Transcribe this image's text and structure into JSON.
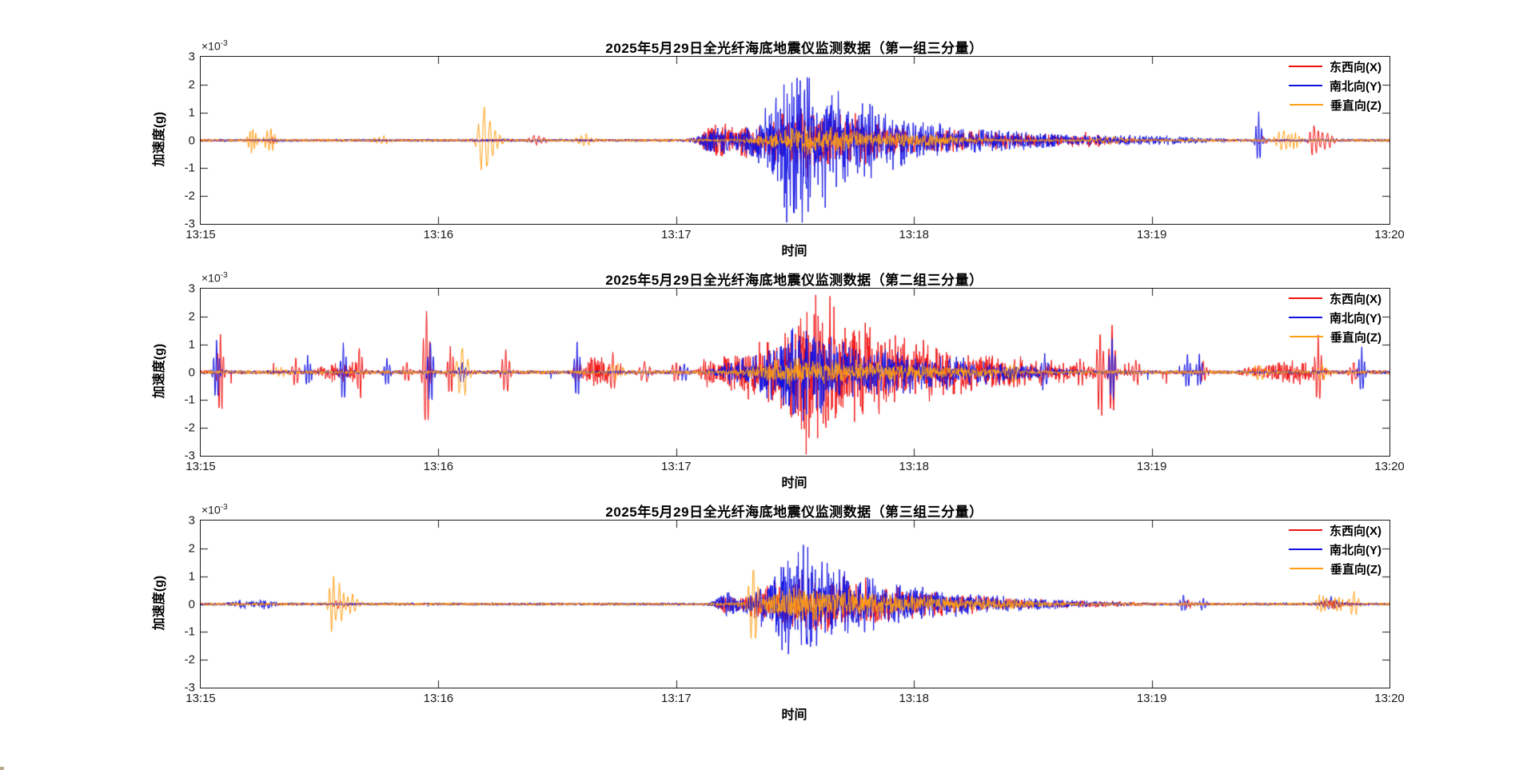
{
  "figure": {
    "background": "#ffffff",
    "axes_color": "#1a1a1a",
    "text_color": "#000000"
  },
  "chart_data": [
    {
      "type": "line",
      "title": "2025年5月29日全光纤海底地震仪监测数据（第一组三分量）",
      "xlabel": "时间",
      "ylabel": "加速度(g)",
      "y_exponent_base": "×10",
      "y_exponent_power": "-3",
      "x_ticks": [
        "13:15",
        "13:16",
        "13:17",
        "13:18",
        "13:19",
        "13:20"
      ],
      "y_ticks": [
        "3",
        "2",
        "1",
        "0",
        "-1",
        "-2",
        "-3"
      ],
      "ylim_scaled": [
        -3,
        3
      ],
      "y_unit_scale": "1e-3 g",
      "x_range_seconds": 300,
      "grid": false,
      "legend_position": "top-right-inside",
      "event_format": "[t_seconds_after_13:15, peak_amplitude_in_1e-3_g, width_seconds, mode b=random-burst s=spike-wavelet w=wiggle]",
      "series": [
        {
          "name": "东西向(X)",
          "color": "#f11010",
          "noise": 0.045,
          "spike_noise": [
            0.002,
            0.1
          ],
          "events": [
            [
              18,
              0.15,
              1,
              "s"
            ],
            [
              85,
              0.15,
              2,
              "w"
            ],
            [
              130,
              0.55,
              4,
              "b"
            ],
            [
              137,
              0.5,
              6,
              "b"
            ],
            [
              150,
              0.85,
              10,
              "b"
            ],
            [
              158,
              0.75,
              12,
              "b"
            ],
            [
              170,
              0.55,
              12,
              "b"
            ],
            [
              185,
              0.35,
              15,
              "b"
            ],
            [
              205,
              0.22,
              18,
              "b"
            ],
            [
              225,
              0.15,
              10,
              "b"
            ],
            [
              268,
              0.12,
              2,
              "s"
            ],
            [
              281,
              0.62,
              1.2,
              "s"
            ],
            [
              284,
              0.25,
              2,
              "w"
            ]
          ]
        },
        {
          "name": "南北向(Y)",
          "color": "#1111e2",
          "noise": 0.05,
          "spike_noise": [
            0.002,
            0.1
          ],
          "events": [
            [
              130,
              0.5,
              4,
              "b"
            ],
            [
              140,
              0.6,
              6,
              "b"
            ],
            [
              149,
              2.1,
              5,
              "b"
            ],
            [
              152,
              1.6,
              8,
              "b"
            ],
            [
              158,
              1.1,
              10,
              "b"
            ],
            [
              168,
              1.0,
              12,
              "b"
            ],
            [
              183,
              0.5,
              15,
              "b"
            ],
            [
              205,
              0.3,
              18,
              "b"
            ],
            [
              235,
              0.15,
              20,
              "b"
            ],
            [
              267,
              0.92,
              0.8,
              "s"
            ]
          ]
        },
        {
          "name": "垂直向(Z)",
          "color": "#ff9e14",
          "noise": 0.05,
          "spike_noise": [
            0.001,
            0.08
          ],
          "events": [
            [
              13,
              0.36,
              1.2,
              "w"
            ],
            [
              17.5,
              0.38,
              1.5,
              "w"
            ],
            [
              46,
              0.12,
              2,
              "w"
            ],
            [
              71.5,
              1.15,
              1.6,
              "s"
            ],
            [
              74,
              0.3,
              2,
              "w"
            ],
            [
              97,
              0.18,
              2,
              "w"
            ],
            [
              150,
              0.32,
              10,
              "b"
            ],
            [
              160,
              0.3,
              14,
              "b"
            ],
            [
              180,
              0.2,
              15,
              "b"
            ],
            [
              230,
              0.12,
              3,
              "w"
            ],
            [
              273,
              0.3,
              2,
              "w"
            ],
            [
              276,
              0.28,
              1.5,
              "w"
            ]
          ]
        }
      ]
    },
    {
      "type": "line",
      "title": "2025年5月29日全光纤海底地震仪监测数据（第二组三分量）",
      "xlabel": "时间",
      "ylabel": "加速度(g)",
      "y_exponent_base": "×10",
      "y_exponent_power": "-3",
      "x_ticks": [
        "13:15",
        "13:16",
        "13:17",
        "13:18",
        "13:19",
        "13:20"
      ],
      "y_ticks": [
        "3",
        "2",
        "1",
        "0",
        "-1",
        "-2",
        "-3"
      ],
      "ylim_scaled": [
        -3,
        3
      ],
      "y_unit_scale": "1e-3 g",
      "x_range_seconds": 300,
      "grid": false,
      "legend_position": "top-right-inside",
      "event_format": "[t_seconds_after_13:15, peak_amplitude_in_1e-3_g, width_seconds, mode b=random-burst s=spike-wavelet w=wiggle]",
      "series": [
        {
          "name": "东西向(X)",
          "color": "#f11010",
          "noise": 0.07,
          "spike_noise": [
            0.006,
            0.4
          ],
          "events": [
            [
              5,
              1.5,
              0.8,
              "s"
            ],
            [
              24,
              0.45,
              1,
              "s"
            ],
            [
              33,
              0.3,
              3,
              "b"
            ],
            [
              38,
              0.35,
              3,
              "b"
            ],
            [
              40,
              0.95,
              0.8,
              "s"
            ],
            [
              52,
              0.35,
              1,
              "s"
            ],
            [
              57,
              2.4,
              0.9,
              "s"
            ],
            [
              63,
              1.0,
              0.8,
              "s"
            ],
            [
              77,
              0.85,
              1,
              "s"
            ],
            [
              95,
              0.4,
              1,
              "s"
            ],
            [
              100,
              0.65,
              3,
              "b"
            ],
            [
              104,
              0.7,
              1,
              "s"
            ],
            [
              112,
              0.35,
              1.5,
              "s"
            ],
            [
              120,
              0.4,
              1,
              "s"
            ],
            [
              128,
              0.5,
              2,
              "b"
            ],
            [
              134,
              0.55,
              4,
              "b"
            ],
            [
              140,
              0.8,
              6,
              "b"
            ],
            [
              148,
              1.1,
              8,
              "b"
            ],
            [
              154,
              2.0,
              6,
              "b"
            ],
            [
              160,
              1.6,
              10,
              "b"
            ],
            [
              170,
              1.1,
              12,
              "b"
            ],
            [
              182,
              0.75,
              14,
              "b"
            ],
            [
              198,
              0.5,
              16,
              "b"
            ],
            [
              215,
              0.3,
              15,
              "b"
            ],
            [
              222,
              0.4,
              1,
              "s"
            ],
            [
              227,
              1.55,
              0.9,
              "s"
            ],
            [
              230,
              1.8,
              0.9,
              "s"
            ],
            [
              236,
              0.5,
              1,
              "s"
            ],
            [
              253,
              0.4,
              1,
              "s"
            ],
            [
              272,
              0.28,
              8,
              "b"
            ],
            [
              277,
              0.3,
              5,
              "b"
            ],
            [
              282,
              1.15,
              0.9,
              "s"
            ],
            [
              291,
              0.4,
              1,
              "s"
            ]
          ]
        },
        {
          "name": "南北向(Y)",
          "color": "#1111e2",
          "noise": 0.06,
          "spike_noise": [
            0.003,
            0.25
          ],
          "events": [
            [
              4,
              1.05,
              0.8,
              "s"
            ],
            [
              27,
              0.5,
              0.8,
              "s"
            ],
            [
              36,
              1.05,
              0.8,
              "s"
            ],
            [
              47,
              0.55,
              0.8,
              "s"
            ],
            [
              58,
              1.2,
              0.8,
              "s"
            ],
            [
              66,
              0.4,
              1,
              "s"
            ],
            [
              95,
              1.05,
              0.8,
              "s"
            ],
            [
              122,
              0.35,
              1,
              "s"
            ],
            [
              134,
              0.4,
              4,
              "b"
            ],
            [
              142,
              0.6,
              6,
              "b"
            ],
            [
              150,
              1.2,
              8,
              "b"
            ],
            [
              158,
              1.05,
              10,
              "b"
            ],
            [
              170,
              0.7,
              12,
              "b"
            ],
            [
              184,
              0.45,
              14,
              "b"
            ],
            [
              200,
              0.3,
              16,
              "b"
            ],
            [
              213,
              0.6,
              1,
              "s"
            ],
            [
              230,
              1.1,
              0.8,
              "s"
            ],
            [
              249,
              0.65,
              0.8,
              "s"
            ],
            [
              252,
              0.6,
              0.8,
              "s"
            ],
            [
              293,
              0.85,
              0.8,
              "s"
            ]
          ]
        },
        {
          "name": "垂直向(Z)",
          "color": "#ff9e14",
          "noise": 0.06,
          "spike_noise": [
            0.001,
            0.1
          ],
          "events": [
            [
              20,
              0.15,
              2,
              "w"
            ],
            [
              66,
              0.9,
              1.6,
              "s"
            ],
            [
              105,
              0.25,
              2,
              "w"
            ],
            [
              148,
              0.35,
              10,
              "b"
            ],
            [
              158,
              0.32,
              12,
              "b"
            ],
            [
              172,
              0.25,
              14,
              "b"
            ],
            [
              190,
              0.18,
              14,
              "b"
            ],
            [
              205,
              0.3,
              1.5,
              "w"
            ],
            [
              267,
              0.25,
              2,
              "w"
            ],
            [
              283,
              0.3,
              1.2,
              "s"
            ]
          ]
        }
      ]
    },
    {
      "type": "line",
      "title": "2025年5月29日全光纤海底地震仪监测数据（第三组三分量）",
      "xlabel": "时间",
      "ylabel": "加速度(g)",
      "y_exponent_base": "×10",
      "y_exponent_power": "-3",
      "x_ticks": [
        "13:15",
        "13:16",
        "13:17",
        "13:18",
        "13:19",
        "13:20"
      ],
      "y_ticks": [
        "3",
        "2",
        "1",
        "0",
        "-1",
        "-2",
        "-3"
      ],
      "ylim_scaled": [
        -3,
        3
      ],
      "y_unit_scale": "1e-3 g",
      "x_range_seconds": 300,
      "grid": false,
      "legend_position": "top-right-inside",
      "event_format": "[t_seconds_after_13:15, peak_amplitude_in_1e-3_g, width_seconds, mode b=random-burst s=spike-wavelet w=wiggle]",
      "series": [
        {
          "name": "东西向(X)",
          "color": "#f11010",
          "noise": 0.04,
          "spike_noise": [
            0.001,
            0.08
          ],
          "events": [
            [
              35,
              0.12,
              2,
              "w"
            ],
            [
              133,
              0.3,
              3,
              "b"
            ],
            [
              143,
              0.55,
              6,
              "b"
            ],
            [
              151,
              0.85,
              8,
              "b"
            ],
            [
              159,
              0.8,
              10,
              "b"
            ],
            [
              170,
              0.55,
              12,
              "b"
            ],
            [
              183,
              0.35,
              14,
              "b"
            ],
            [
              200,
              0.2,
              16,
              "b"
            ],
            [
              225,
              0.1,
              15,
              "b"
            ],
            [
              249,
              0.12,
              1.5,
              "w"
            ],
            [
              286,
              0.15,
              4,
              "b"
            ]
          ]
        },
        {
          "name": "南北向(Y)",
          "color": "#1111e2",
          "noise": 0.05,
          "spike_noise": [
            0.001,
            0.08
          ],
          "events": [
            [
              10,
              0.15,
              3,
              "b"
            ],
            [
              16,
              0.18,
              3,
              "b"
            ],
            [
              133,
              0.45,
              3,
              "b"
            ],
            [
              141,
              0.5,
              5,
              "b"
            ],
            [
              149,
              1.25,
              6,
              "b"
            ],
            [
              154,
              1.3,
              8,
              "b"
            ],
            [
              163,
              0.9,
              10,
              "b"
            ],
            [
              175,
              0.55,
              12,
              "b"
            ],
            [
              190,
              0.35,
              14,
              "b"
            ],
            [
              210,
              0.18,
              16,
              "b"
            ],
            [
              248,
              0.3,
              1,
              "s"
            ],
            [
              253,
              0.2,
              1,
              "s"
            ],
            [
              285,
              0.2,
              2,
              "w"
            ]
          ]
        },
        {
          "name": "垂直向(Z)",
          "color": "#ff9e14",
          "noise": 0.05,
          "spike_noise": [
            0.001,
            0.08
          ],
          "events": [
            [
              33.5,
              1.05,
              1.1,
              "s"
            ],
            [
              35,
              0.85,
              1.3,
              "s"
            ],
            [
              38,
              0.3,
              2,
              "w"
            ],
            [
              139.5,
              1.35,
              1.4,
              "s"
            ],
            [
              150,
              0.45,
              10,
              "b"
            ],
            [
              162,
              0.4,
              12,
              "b"
            ],
            [
              178,
              0.28,
              14,
              "b"
            ],
            [
              200,
              0.18,
              14,
              "b"
            ],
            [
              283,
              0.28,
              1.5,
              "w"
            ],
            [
              287,
              0.25,
              1.5,
              "w"
            ],
            [
              291,
              0.45,
              1.3,
              "s"
            ]
          ]
        }
      ]
    }
  ]
}
